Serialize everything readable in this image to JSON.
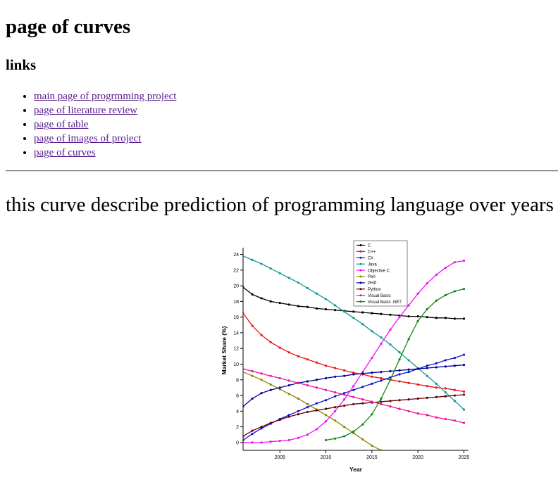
{
  "page": {
    "title": "page of curves",
    "links_heading": "links",
    "links": [
      {
        "label": "main page of progrmming project"
      },
      {
        "label": "page of literature review"
      },
      {
        "label": "page of table"
      },
      {
        "label": "page of images of project"
      },
      {
        "label": "page of curves"
      }
    ],
    "description": "this curve describe prediction of programming language over years"
  },
  "chart_data": {
    "type": "line",
    "xlabel": "Year",
    "ylabel": "Market Share (%)",
    "xlim": [
      2001,
      2025.5
    ],
    "ylim": [
      -1,
      24.5
    ],
    "xticks": [
      2005,
      2010,
      2015,
      2020,
      2025
    ],
    "yticks": [
      0,
      2,
      4,
      6,
      8,
      10,
      12,
      14,
      16,
      18,
      20,
      22,
      24
    ],
    "legend_position": "top-center",
    "series": [
      {
        "name": "C",
        "color": "#000000",
        "x": [
          2001,
          2002,
          2003,
          2004,
          2005,
          2006,
          2007,
          2008,
          2009,
          2010,
          2011,
          2012,
          2013,
          2014,
          2015,
          2016,
          2017,
          2018,
          2019,
          2020,
          2021,
          2022,
          2023,
          2024,
          2025
        ],
        "y": [
          19.8,
          18.9,
          18.4,
          18.0,
          17.8,
          17.6,
          17.4,
          17.3,
          17.1,
          17.0,
          16.9,
          16.8,
          16.7,
          16.6,
          16.5,
          16.4,
          16.3,
          16.2,
          16.1,
          16.1,
          16.0,
          15.9,
          15.9,
          15.8,
          15.8
        ]
      },
      {
        "name": "C++",
        "color": "#ee1111",
        "x": [
          2001,
          2002,
          2003,
          2004,
          2005,
          2006,
          2007,
          2008,
          2009,
          2010,
          2011,
          2012,
          2013,
          2014,
          2015,
          2016,
          2017,
          2018,
          2019,
          2020,
          2021,
          2022,
          2023,
          2024,
          2025
        ],
        "y": [
          16.5,
          14.9,
          13.7,
          12.8,
          12.1,
          11.5,
          11.0,
          10.6,
          10.2,
          9.8,
          9.5,
          9.2,
          8.9,
          8.7,
          8.4,
          8.2,
          8.0,
          7.8,
          7.6,
          7.4,
          7.2,
          7.0,
          6.9,
          6.7,
          6.5
        ]
      },
      {
        "name": "C#",
        "color": "#1111cc",
        "x": [
          2001,
          2002,
          2003,
          2004,
          2005,
          2006,
          2007,
          2008,
          2009,
          2010,
          2011,
          2012,
          2013,
          2014,
          2015,
          2016,
          2017,
          2018,
          2019,
          2020,
          2021,
          2022,
          2023,
          2024,
          2025
        ],
        "y": [
          0.3,
          1.1,
          1.8,
          2.4,
          3.0,
          3.5,
          4.0,
          4.5,
          5.0,
          5.4,
          5.9,
          6.3,
          6.7,
          7.1,
          7.5,
          7.9,
          8.3,
          8.7,
          9.0,
          9.4,
          9.8,
          10.1,
          10.5,
          10.8,
          11.2
        ]
      },
      {
        "name": "Java",
        "color": "#119999",
        "x": [
          2001,
          2002,
          2003,
          2004,
          2005,
          2006,
          2007,
          2008,
          2009,
          2010,
          2011,
          2012,
          2013,
          2014,
          2015,
          2016,
          2017,
          2018,
          2019,
          2020,
          2021,
          2022,
          2023,
          2024,
          2025
        ],
        "y": [
          23.8,
          23.3,
          22.8,
          22.2,
          21.6,
          21.0,
          20.4,
          19.7,
          19.0,
          18.3,
          17.5,
          16.7,
          15.9,
          15.1,
          14.2,
          13.4,
          12.5,
          11.5,
          10.5,
          9.5,
          8.5,
          7.5,
          6.4,
          5.3,
          4.2
        ]
      },
      {
        "name": "Objective C",
        "color": "#ee11ee",
        "x": [
          2001,
          2002,
          2003,
          2004,
          2005,
          2006,
          2007,
          2008,
          2009,
          2010,
          2011,
          2012,
          2013,
          2014,
          2015,
          2016,
          2017,
          2018,
          2019,
          2020,
          2021,
          2022,
          2023,
          2024,
          2025
        ],
        "y": [
          0.0,
          0.0,
          0.0,
          0.1,
          0.2,
          0.3,
          0.6,
          1.0,
          1.7,
          2.7,
          4.0,
          5.5,
          7.2,
          9.0,
          10.8,
          12.6,
          14.4,
          16.0,
          17.5,
          19.0,
          20.3,
          21.4,
          22.3,
          23.0,
          23.2
        ]
      },
      {
        "name": "Perl",
        "color": "#888800",
        "x": [
          2001,
          2002,
          2003,
          2004,
          2005,
          2006,
          2007,
          2008,
          2009,
          2010,
          2011,
          2012,
          2013,
          2014,
          2015,
          2016
        ],
        "y": [
          9.0,
          8.5,
          8.0,
          7.4,
          6.8,
          6.2,
          5.6,
          4.9,
          4.2,
          3.5,
          2.8,
          2.0,
          1.2,
          0.4,
          -0.4,
          -1.0
        ]
      },
      {
        "name": "PHP",
        "color": "#000099",
        "x": [
          2001,
          2002,
          2003,
          2004,
          2005,
          2006,
          2007,
          2008,
          2009,
          2010,
          2011,
          2012,
          2013,
          2014,
          2015,
          2016,
          2017,
          2018,
          2019,
          2020,
          2021,
          2022,
          2023,
          2024,
          2025
        ],
        "y": [
          4.6,
          5.6,
          6.3,
          6.7,
          7.0,
          7.3,
          7.6,
          7.8,
          8.0,
          8.2,
          8.4,
          8.5,
          8.7,
          8.8,
          8.9,
          9.0,
          9.1,
          9.2,
          9.3,
          9.4,
          9.5,
          9.6,
          9.7,
          9.8,
          9.9
        ]
      },
      {
        "name": "Python",
        "color": "#660000",
        "x": [
          2001,
          2002,
          2003,
          2004,
          2005,
          2006,
          2007,
          2008,
          2009,
          2010,
          2011,
          2012,
          2013,
          2014,
          2015,
          2016,
          2017,
          2018,
          2019,
          2020,
          2021,
          2022,
          2023,
          2024,
          2025
        ],
        "y": [
          0.8,
          1.5,
          2.0,
          2.5,
          2.9,
          3.3,
          3.6,
          3.9,
          4.1,
          4.3,
          4.5,
          4.7,
          4.9,
          5.0,
          5.1,
          5.2,
          5.3,
          5.4,
          5.5,
          5.6,
          5.7,
          5.8,
          5.9,
          6.0,
          6.1
        ]
      },
      {
        "name": "Visual Basic",
        "color": "#ee1199",
        "x": [
          2001,
          2002,
          2003,
          2004,
          2005,
          2006,
          2007,
          2008,
          2009,
          2010,
          2011,
          2012,
          2013,
          2014,
          2015,
          2016,
          2017,
          2018,
          2019,
          2020,
          2021,
          2022,
          2023,
          2024,
          2025
        ],
        "y": [
          9.4,
          9.1,
          8.8,
          8.5,
          8.2,
          7.9,
          7.6,
          7.3,
          7.0,
          6.7,
          6.4,
          6.1,
          5.8,
          5.5,
          5.2,
          4.9,
          4.6,
          4.3,
          4.0,
          3.7,
          3.5,
          3.2,
          3.0,
          2.8,
          2.5
        ]
      },
      {
        "name": "Visual Basic .NET",
        "color": "#118811",
        "x": [
          2010,
          2011,
          2012,
          2013,
          2014,
          2015,
          2016,
          2017,
          2018,
          2019,
          2020,
          2021,
          2022,
          2023,
          2024,
          2025
        ],
        "y": [
          0.3,
          0.5,
          0.8,
          1.4,
          2.3,
          3.6,
          5.6,
          8.0,
          10.6,
          13.2,
          15.5,
          17.0,
          18.1,
          18.8,
          19.3,
          19.6
        ]
      }
    ]
  }
}
